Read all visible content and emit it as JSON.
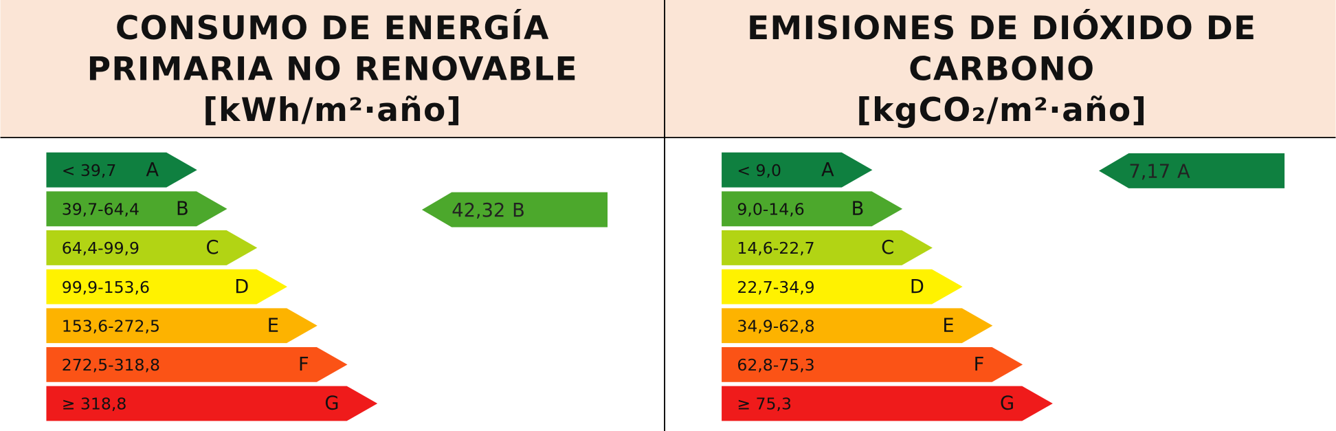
{
  "panels": [
    {
      "title": [
        "CONSUMO DE ENERGÍA",
        "PRIMARIA NO RENOVABLE"
      ],
      "unit": "[kWh/m²·año]",
      "bands": [
        {
          "range": "< 39,7",
          "letter": "A"
        },
        {
          "range": "39,7-64,4",
          "letter": "B"
        },
        {
          "range": "64,4-99,9",
          "letter": "C"
        },
        {
          "range": "99,9-153,6",
          "letter": "D"
        },
        {
          "range": "153,6-272,5",
          "letter": "E"
        },
        {
          "range": "272,5-318,8",
          "letter": "F"
        },
        {
          "range": "≥ 318,8",
          "letter": "G"
        }
      ],
      "indicator": {
        "value": "42,32",
        "letter": "B"
      }
    },
    {
      "title": [
        "EMISIONES DE DIÓXIDO DE",
        "CARBONO"
      ],
      "unit": "[kgCO₂/m²·año]",
      "bands": [
        {
          "range": "< 9,0",
          "letter": "A"
        },
        {
          "range": "9,0-14,6",
          "letter": "B"
        },
        {
          "range": "14,6-22,7",
          "letter": "C"
        },
        {
          "range": "22,7-34,9",
          "letter": "D"
        },
        {
          "range": "34,9-62,8",
          "letter": "E"
        },
        {
          "range": "62,8-75,3",
          "letter": "F"
        },
        {
          "range": "≥ 75,3",
          "letter": "G"
        }
      ],
      "indicator": {
        "value": "7,17",
        "letter": "A"
      }
    }
  ]
}
